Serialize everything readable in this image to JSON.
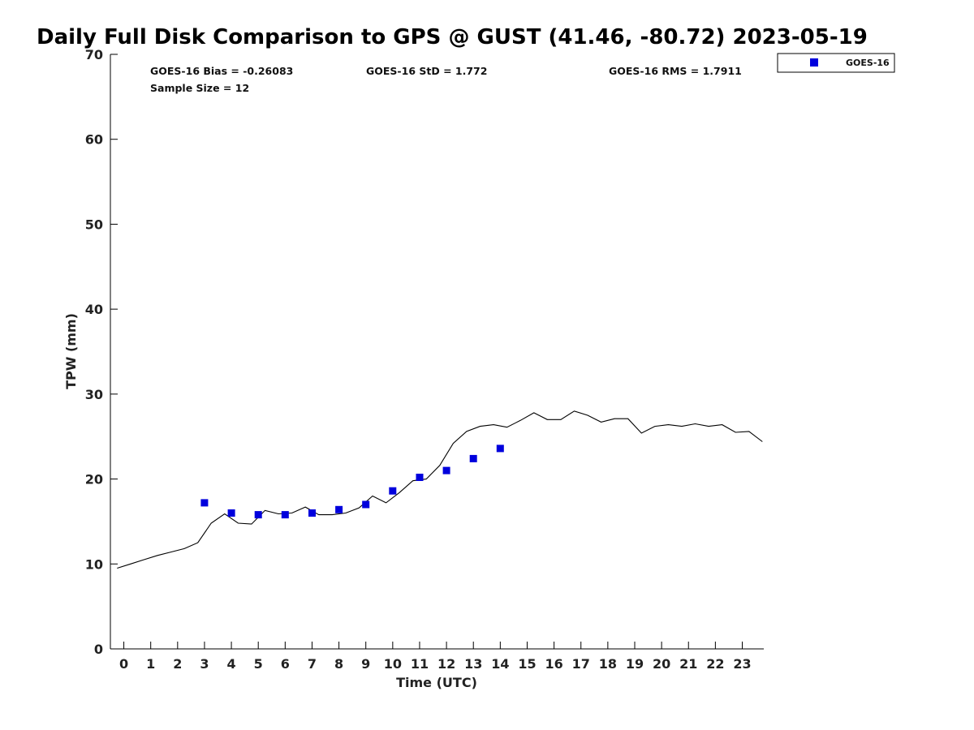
{
  "chart_data": {
    "type": "scatter",
    "title": "Daily Full Disk Comparison to GPS @ GUST (41.46, -80.72) 2023-05-19",
    "xlabel": "Time (UTC)",
    "ylabel": "TPW (mm)",
    "xlim": [
      -0.5,
      23.8
    ],
    "ylim": [
      0,
      70
    ],
    "x_ticks": [
      0,
      1,
      2,
      3,
      4,
      5,
      6,
      7,
      8,
      9,
      10,
      11,
      12,
      13,
      14,
      15,
      16,
      17,
      18,
      19,
      20,
      21,
      22,
      23
    ],
    "y_ticks": [
      0,
      10,
      20,
      30,
      40,
      50,
      60,
      70
    ],
    "grid": false,
    "legend_position": "top-right-outside",
    "stats": {
      "bias": "GOES-16 Bias = -0.26083",
      "std": "GOES-16 StD = 1.772",
      "rms": "GOES-16 RMS = 1.7911",
      "sample_size": "Sample Size = 12"
    },
    "series": [
      {
        "name": "GOES-16",
        "kind": "scatter",
        "marker": "square",
        "color": "#0000dd",
        "x": [
          3,
          4,
          5,
          6,
          7,
          8,
          9,
          10,
          11,
          12,
          13,
          14
        ],
        "y": [
          17.2,
          16.0,
          15.8,
          15.8,
          16.0,
          16.4,
          17.0,
          18.6,
          20.2,
          21.0,
          22.4,
          23.6
        ]
      },
      {
        "kind": "line",
        "color": "#000000",
        "x": [
          -0.25,
          0.25,
          0.75,
          1.25,
          1.75,
          2.25,
          2.75,
          3.25,
          3.75,
          4.25,
          4.75,
          5.25,
          5.75,
          6.25,
          6.75,
          7.25,
          7.75,
          8.25,
          8.75,
          9.25,
          9.75,
          10.25,
          10.75,
          11.25,
          11.75,
          12.25,
          12.75,
          13.25,
          13.75,
          14.25,
          14.75,
          15.25,
          15.75,
          16.25,
          16.75,
          17.25,
          17.75,
          18.25,
          18.75,
          19.25,
          19.75,
          20.25,
          20.75,
          21.25,
          21.75,
          22.25,
          22.75,
          23.25,
          23.75
        ],
        "y": [
          9.5,
          10.0,
          10.5,
          11.0,
          11.4,
          11.8,
          12.5,
          14.8,
          15.9,
          14.8,
          14.7,
          16.3,
          15.9,
          16.0,
          16.7,
          15.8,
          15.8,
          16.0,
          16.6,
          18.0,
          17.2,
          18.4,
          19.8,
          20.0,
          21.6,
          24.2,
          25.6,
          26.2,
          26.4,
          26.1,
          26.9,
          27.8,
          27.0,
          27.0,
          28.0,
          27.5,
          26.7,
          27.1,
          27.1,
          25.4,
          26.2,
          26.4,
          26.2,
          26.5,
          26.2,
          26.4,
          25.5,
          25.6,
          24.4
        ]
      }
    ]
  }
}
